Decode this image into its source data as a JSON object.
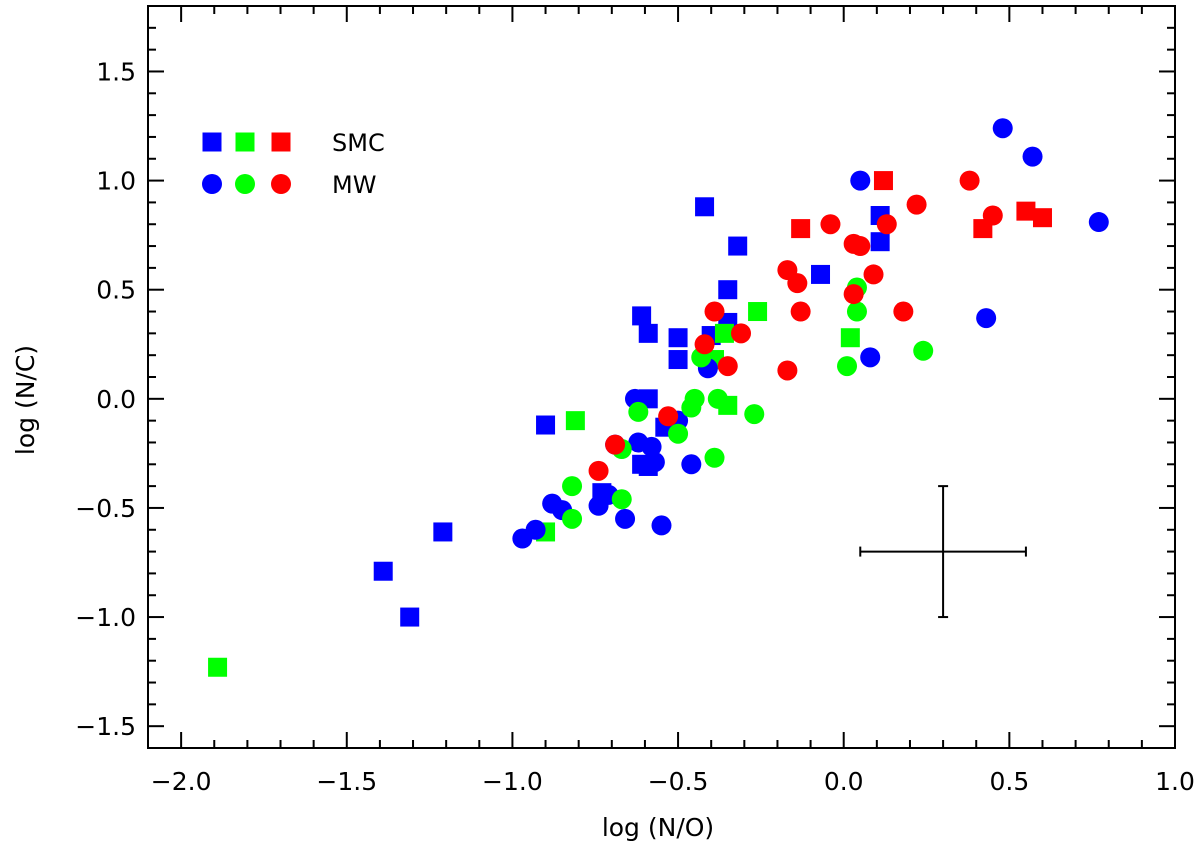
{
  "chart_data": {
    "type": "scatter",
    "title": "",
    "xlabel": "log (N/O)",
    "ylabel": "log (N/C)",
    "xlim": [
      -2.1,
      1.0
    ],
    "ylim": [
      -1.6,
      1.8
    ],
    "xticks": [
      {
        "value": -2.0,
        "label": "−2.0"
      },
      {
        "value": -1.5,
        "label": "−1.5"
      },
      {
        "value": -1.0,
        "label": "−1.0"
      },
      {
        "value": -0.5,
        "label": "−0.5"
      },
      {
        "value": 0.0,
        "label": "0.0"
      },
      {
        "value": 0.5,
        "label": "0.5"
      },
      {
        "value": 1.0,
        "label": "1.0"
      }
    ],
    "yticks": [
      {
        "value": -1.5,
        "label": "−1.5"
      },
      {
        "value": -1.0,
        "label": "−1.0"
      },
      {
        "value": -0.5,
        "label": "−0.5"
      },
      {
        "value": 0.0,
        "label": "0.0"
      },
      {
        "value": 0.5,
        "label": "0.5"
      },
      {
        "value": 1.0,
        "label": "1.0"
      },
      {
        "value": 1.5,
        "label": "1.5"
      }
    ],
    "grid": false,
    "legend": {
      "placement": "top-left",
      "entries": [
        {
          "label": "SMC",
          "marker": "square",
          "colors": [
            "#0000ff",
            "#00ff00",
            "#ff0000"
          ]
        },
        {
          "label": "MW",
          "marker": "circle",
          "colors": [
            "#0000ff",
            "#00ff00",
            "#ff0000"
          ]
        }
      ]
    },
    "series": [
      {
        "marker": "square",
        "color": "#0000ff",
        "points": [
          [
            -1.39,
            -0.79
          ],
          [
            -1.31,
            -1.0
          ],
          [
            -1.21,
            -0.61
          ],
          [
            -0.9,
            -0.12
          ],
          [
            -0.73,
            -0.43
          ],
          [
            -0.61,
            0.38
          ],
          [
            -0.59,
            0.3
          ],
          [
            -0.59,
            0.0
          ],
          [
            -0.59,
            -0.31
          ],
          [
            -0.61,
            -0.3
          ],
          [
            -0.54,
            -0.13
          ],
          [
            -0.5,
            0.28
          ],
          [
            -0.5,
            0.18
          ],
          [
            -0.42,
            0.88
          ],
          [
            -0.4,
            0.29
          ],
          [
            -0.35,
            0.5
          ],
          [
            -0.35,
            0.35
          ],
          [
            -0.32,
            0.7
          ],
          [
            -0.07,
            0.57
          ],
          [
            0.11,
            0.84
          ],
          [
            0.11,
            0.72
          ]
        ]
      },
      {
        "marker": "square",
        "color": "#00ff00",
        "points": [
          [
            -1.89,
            -1.23
          ],
          [
            -0.9,
            -0.61
          ],
          [
            -0.81,
            -0.1
          ],
          [
            -0.39,
            0.18
          ],
          [
            -0.36,
            0.3
          ],
          [
            -0.35,
            -0.03
          ],
          [
            -0.26,
            0.4
          ],
          [
            0.02,
            0.28
          ]
        ]
      },
      {
        "marker": "square",
        "color": "#ff0000",
        "points": [
          [
            -0.13,
            0.78
          ],
          [
            0.12,
            1.0
          ],
          [
            0.42,
            0.78
          ],
          [
            0.55,
            0.86
          ],
          [
            0.6,
            0.83
          ]
        ]
      },
      {
        "marker": "circle",
        "color": "#0000ff",
        "points": [
          [
            -0.97,
            -0.64
          ],
          [
            -0.93,
            -0.6
          ],
          [
            -0.88,
            -0.48
          ],
          [
            -0.85,
            -0.51
          ],
          [
            -0.74,
            -0.49
          ],
          [
            -0.71,
            -0.44
          ],
          [
            -0.69,
            -0.21
          ],
          [
            -0.66,
            -0.55
          ],
          [
            -0.63,
            0.0
          ],
          [
            -0.62,
            -0.2
          ],
          [
            -0.58,
            -0.22
          ],
          [
            -0.57,
            -0.29
          ],
          [
            -0.55,
            -0.58
          ],
          [
            -0.5,
            -0.1
          ],
          [
            -0.46,
            -0.3
          ],
          [
            -0.41,
            0.14
          ],
          [
            0.05,
            1.0
          ],
          [
            0.08,
            0.19
          ],
          [
            0.43,
            0.37
          ],
          [
            0.48,
            1.24
          ],
          [
            0.57,
            1.11
          ],
          [
            0.77,
            0.81
          ]
        ]
      },
      {
        "marker": "circle",
        "color": "#00ff00",
        "points": [
          [
            -0.82,
            -0.4
          ],
          [
            -0.82,
            -0.55
          ],
          [
            -0.67,
            -0.46
          ],
          [
            -0.67,
            -0.23
          ],
          [
            -0.62,
            -0.06
          ],
          [
            -0.5,
            -0.16
          ],
          [
            -0.46,
            -0.04
          ],
          [
            -0.45,
            0.0
          ],
          [
            -0.43,
            0.19
          ],
          [
            -0.38,
            0.0
          ],
          [
            -0.39,
            -0.27
          ],
          [
            -0.27,
            -0.07
          ],
          [
            0.01,
            0.15
          ],
          [
            0.04,
            0.51
          ],
          [
            0.04,
            0.4
          ],
          [
            0.24,
            0.22
          ]
        ]
      },
      {
        "marker": "circle",
        "color": "#ff0000",
        "points": [
          [
            -0.74,
            -0.33
          ],
          [
            -0.69,
            -0.21
          ],
          [
            -0.53,
            -0.08
          ],
          [
            -0.42,
            0.25
          ],
          [
            -0.39,
            0.4
          ],
          [
            -0.35,
            0.15
          ],
          [
            -0.31,
            0.3
          ],
          [
            -0.17,
            0.59
          ],
          [
            -0.17,
            0.13
          ],
          [
            -0.14,
            0.53
          ],
          [
            -0.13,
            0.4
          ],
          [
            -0.04,
            0.8
          ],
          [
            0.03,
            0.48
          ],
          [
            0.03,
            0.71
          ],
          [
            0.05,
            0.7
          ],
          [
            0.09,
            0.57
          ],
          [
            0.13,
            0.8
          ],
          [
            0.18,
            0.4
          ],
          [
            0.22,
            0.89
          ],
          [
            0.38,
            1.0
          ],
          [
            0.45,
            0.84
          ]
        ]
      }
    ],
    "error_bar": {
      "x": 0.3,
      "y": -0.7,
      "xerr": 0.25,
      "yerr": 0.3
    }
  }
}
